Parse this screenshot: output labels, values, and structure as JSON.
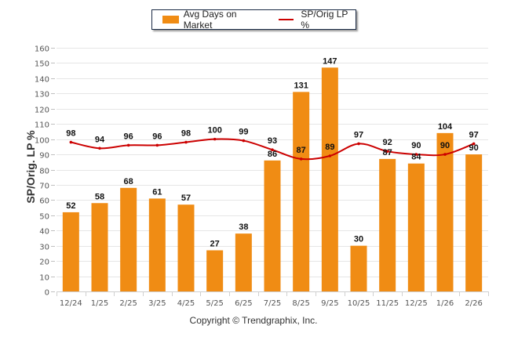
{
  "chart_data": {
    "type": "bar+line",
    "title": "",
    "xlabel": "",
    "ylabel": "SP/Orig. LP %",
    "ylim": [
      0,
      160
    ],
    "yticks": [
      0,
      10,
      20,
      30,
      40,
      50,
      60,
      70,
      80,
      90,
      100,
      110,
      120,
      130,
      140,
      150,
      160
    ],
    "grid": true,
    "legend_position": "top-center",
    "categories": [
      "12/24",
      "1/25",
      "2/25",
      "3/25",
      "4/25",
      "5/25",
      "6/25",
      "7/25",
      "8/25",
      "9/25",
      "10/25",
      "11/25",
      "12/25",
      "1/26",
      "2/26"
    ],
    "series": [
      {
        "name": "Avg Days on Market",
        "type": "bar",
        "color": "#f08c14",
        "values": [
          52,
          58,
          68,
          61,
          57,
          27,
          38,
          86,
          131,
          147,
          30,
          87,
          84,
          104,
          90
        ]
      },
      {
        "name": "SP/Orig LP %",
        "type": "line",
        "color": "#cc0000",
        "values": [
          98,
          94,
          96,
          96,
          98,
          100,
          99,
          93,
          87,
          89,
          97,
          92,
          90,
          90,
          97
        ]
      }
    ],
    "footer": "Copyright © Trendgraphix, Inc."
  }
}
